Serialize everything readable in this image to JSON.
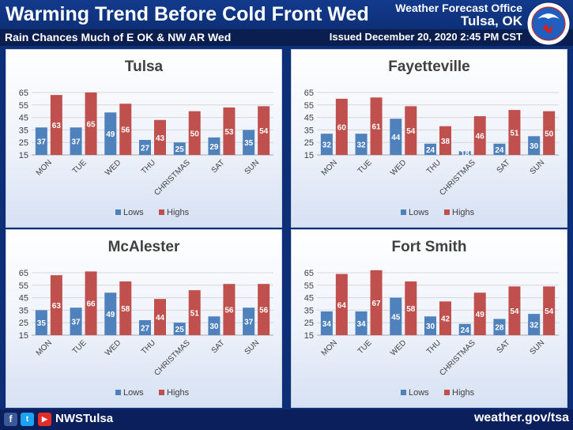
{
  "header": {
    "title": "Warming Trend Before Cold Front Wed",
    "subtitle": "Rain Chances Much of E OK & NW AR Wed",
    "office": "Weather Forecast Office",
    "city": "Tulsa, OK",
    "issued": "Issued December 20, 2020 2:45 PM CST"
  },
  "footer": {
    "handle": "NWSTulsa",
    "website": "weather.gov/tsa",
    "icons": [
      "facebook-icon",
      "twitter-icon",
      "youtube-icon"
    ]
  },
  "colors": {
    "lows": "#4f81bd",
    "highs": "#c0504d",
    "background": "#0d2f78",
    "panel": "#ffffff"
  },
  "chart_data": [
    {
      "type": "bar",
      "title": "Tulsa",
      "categories": [
        "MON",
        "TUE",
        "WED",
        "THU",
        "CHRISTMAS",
        "SAT",
        "SUN"
      ],
      "series": [
        {
          "name": "Lows",
          "values": [
            37,
            37,
            49,
            27,
            25,
            29,
            35
          ]
        },
        {
          "name": "Highs",
          "values": [
            63,
            65,
            56,
            43,
            50,
            53,
            54
          ]
        }
      ],
      "ylim": [
        15,
        65
      ],
      "yticks": [
        15,
        25,
        35,
        45,
        55,
        65
      ],
      "grid": true,
      "legend": "bottom"
    },
    {
      "type": "bar",
      "title": "Fayetteville",
      "categories": [
        "MON",
        "TUE",
        "WED",
        "THU",
        "CHRISTMAS",
        "SAT",
        "SUN"
      ],
      "series": [
        {
          "name": "Lows",
          "values": [
            32,
            32,
            44,
            24,
            18,
            24,
            30
          ]
        },
        {
          "name": "Highs",
          "values": [
            60,
            61,
            54,
            38,
            46,
            51,
            50
          ]
        }
      ],
      "ylim": [
        15,
        65
      ],
      "yticks": [
        15,
        25,
        35,
        45,
        55,
        65
      ],
      "grid": true,
      "legend": "bottom"
    },
    {
      "type": "bar",
      "title": "McAlester",
      "categories": [
        "MON",
        "TUE",
        "WED",
        "THU",
        "CHRISTMAS",
        "SAT",
        "SUN"
      ],
      "series": [
        {
          "name": "Lows",
          "values": [
            35,
            37,
            49,
            27,
            25,
            30,
            37
          ]
        },
        {
          "name": "Highs",
          "values": [
            63,
            66,
            58,
            44,
            51,
            56,
            56
          ]
        }
      ],
      "ylim": [
        15,
        65
      ],
      "yticks": [
        15,
        25,
        35,
        45,
        55,
        65
      ],
      "grid": true,
      "legend": "bottom"
    },
    {
      "type": "bar",
      "title": "Fort Smith",
      "categories": [
        "MON",
        "TUE",
        "WED",
        "THU",
        "CHRISTMAS",
        "SAT",
        "SUN"
      ],
      "series": [
        {
          "name": "Lows",
          "values": [
            34,
            34,
            45,
            30,
            24,
            28,
            32
          ]
        },
        {
          "name": "Highs",
          "values": [
            64,
            67,
            58,
            42,
            49,
            54,
            54
          ]
        }
      ],
      "ylim": [
        15,
        65
      ],
      "yticks": [
        15,
        25,
        35,
        45,
        55,
        65
      ],
      "grid": true,
      "legend": "bottom"
    }
  ]
}
